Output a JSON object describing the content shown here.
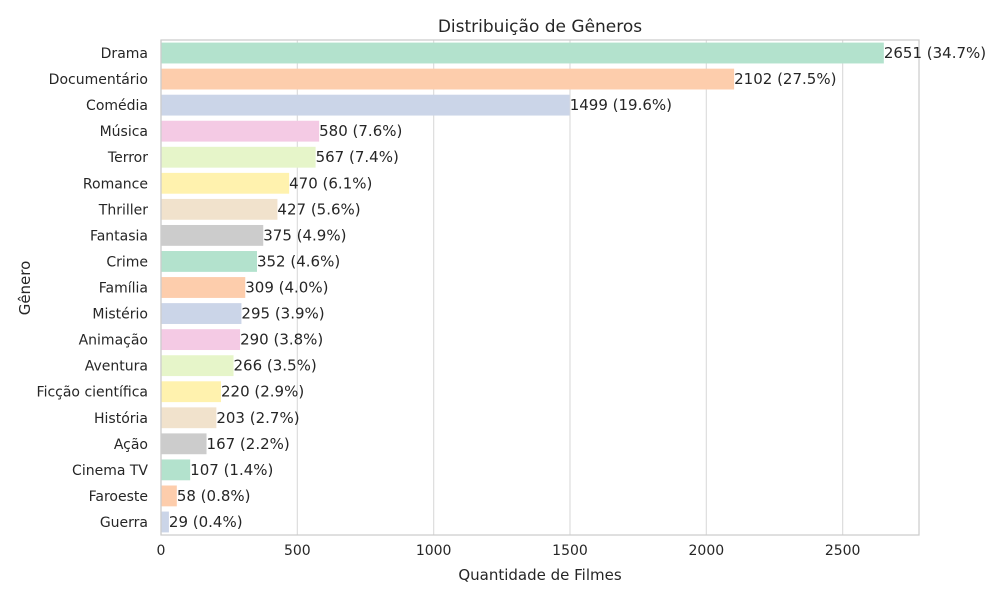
{
  "chart_data": {
    "type": "bar",
    "orientation": "horizontal",
    "title": "Distribuição de Gêneros",
    "xlabel": "Quantidade de Filmes",
    "ylabel": "Gênero",
    "xlim": [
      0,
      2780
    ],
    "xticks": [
      0,
      500,
      1000,
      1500,
      2000,
      2500
    ],
    "grid": true,
    "legend": "none",
    "categories": [
      "Drama",
      "Documentário",
      "Comédia",
      "Música",
      "Terror",
      "Romance",
      "Thriller",
      "Fantasia",
      "Crime",
      "Família",
      "Mistério",
      "Animação",
      "Aventura",
      "Ficção científica",
      "História",
      "Ação",
      "Cinema TV",
      "Faroeste",
      "Guerra"
    ],
    "values": [
      2651,
      2102,
      1499,
      580,
      567,
      470,
      427,
      375,
      352,
      309,
      295,
      290,
      266,
      220,
      203,
      167,
      107,
      58,
      29
    ],
    "data_labels": [
      "2651 (34.7%)",
      "2102 (27.5%)",
      "1499 (19.6%)",
      "580 (7.6%)",
      "567 (7.4%)",
      "470 (6.1%)",
      "427 (5.6%)",
      "375 (4.9%)",
      "352 (4.6%)",
      "309 (4.0%)",
      "295 (3.9%)",
      "290 (3.8%)",
      "266 (3.5%)",
      "220 (2.9%)",
      "203 (2.7%)",
      "167 (2.2%)",
      "107 (1.4%)",
      "58 (0.8%)",
      "29 (0.4%)"
    ],
    "palette": [
      "#b3e2cd",
      "#fdcdac",
      "#cbd5e8",
      "#f4cae4",
      "#e6f5c9",
      "#fff2ae",
      "#f1e2cc",
      "#cccccc"
    ]
  }
}
